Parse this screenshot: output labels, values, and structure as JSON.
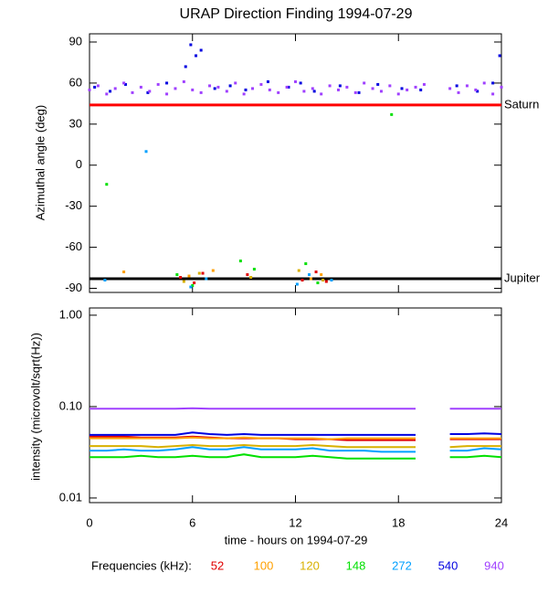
{
  "title": "URAP Direction Finding  1994-07-29",
  "xlabel": "time - hours on 1994-07-29",
  "legend_title": "Frequencies (kHz):",
  "chart_data": [
    {
      "type": "scatter",
      "ylabel": "Azimuthal angle (deg)",
      "xlim": [
        0,
        24
      ],
      "xticks": [
        0,
        6,
        12,
        18,
        24
      ],
      "ylim": [
        -93,
        96
      ],
      "yticks": [
        90,
        60,
        30,
        0,
        -30,
        -60,
        -90
      ],
      "reference_lines": [
        {
          "label": "Saturn",
          "value": 44,
          "color": "#ff0000"
        },
        {
          "label": "Jupiter",
          "value": -83,
          "color": "#000000"
        }
      ],
      "series": [
        {
          "name": "52",
          "color": "#e00000",
          "x": [
            5.3,
            6.1,
            6.6,
            9.2,
            12.4,
            13.2,
            13.8
          ],
          "values": [
            -82,
            -86,
            -79,
            -80,
            -84,
            -78,
            -85
          ]
        },
        {
          "name": "100",
          "color": "#ffa000",
          "x": [
            2.0,
            5.8,
            7.2,
            12.9,
            13.5
          ],
          "values": [
            -78,
            -81,
            -77,
            -83,
            -80
          ]
        },
        {
          "name": "120",
          "color": "#d8b000",
          "x": [
            5.5,
            6.4,
            9.4,
            12.2,
            13.6
          ],
          "values": [
            -85,
            -79,
            -82,
            -77,
            -84
          ]
        },
        {
          "name": "148",
          "color": "#00e000",
          "x": [
            1.0,
            5.1,
            6.0,
            8.8,
            9.6,
            12.6,
            13.3,
            17.6
          ],
          "values": [
            -14,
            -80,
            -88,
            -70,
            -76,
            -72,
            -86,
            37
          ]
        },
        {
          "name": "272",
          "color": "#00a0ff",
          "x": [
            0.9,
            3.3,
            5.9,
            6.8,
            12.1,
            12.8,
            14.1
          ],
          "values": [
            -84,
            10,
            -89,
            -83,
            -87,
            -80,
            -84
          ]
        },
        {
          "name": "540",
          "color": "#0000e0",
          "x": [
            0.3,
            1.2,
            2.1,
            3.4,
            4.5,
            5.6,
            5.9,
            6.2,
            6.5,
            7.3,
            8.2,
            9.1,
            10.4,
            11.6,
            12.3,
            13.1,
            14.6,
            15.7,
            16.8,
            18.2,
            19.3,
            21.4,
            22.6,
            23.5,
            23.9
          ],
          "values": [
            57,
            54,
            59,
            53,
            60,
            72,
            88,
            80,
            84,
            56,
            58,
            55,
            61,
            57,
            60,
            54,
            58,
            53,
            59,
            56,
            55,
            58,
            54,
            60,
            80
          ]
        },
        {
          "name": "940",
          "color": "#a040ff",
          "x": [
            0,
            0.5,
            1,
            1.5,
            2,
            2.5,
            3,
            3.5,
            4,
            4.5,
            5,
            5.5,
            6,
            6.5,
            7,
            7.5,
            8,
            8.5,
            9,
            9.5,
            10,
            10.5,
            11,
            11.5,
            12,
            12.5,
            13,
            13.5,
            14,
            14.5,
            15,
            15.5,
            16,
            16.5,
            17,
            17.5,
            18,
            18.5,
            19,
            19.5,
            21,
            21.5,
            22,
            22.5,
            23,
            23.5,
            24
          ],
          "values": [
            55,
            58,
            52,
            56,
            60,
            53,
            57,
            54,
            59,
            52,
            56,
            61,
            55,
            53,
            58,
            57,
            54,
            60,
            52,
            56,
            59,
            55,
            53,
            57,
            61,
            54,
            56,
            52,
            58,
            55,
            57,
            53,
            60,
            56,
            54,
            58,
            52,
            55,
            57,
            59,
            56,
            53,
            58,
            55,
            60,
            52,
            57
          ]
        }
      ]
    },
    {
      "type": "line",
      "ylabel": "intensity (microvolt/sqrt(Hz))",
      "log_scale": true,
      "xlim": [
        0,
        24
      ],
      "xticks": [
        0,
        6,
        12,
        18,
        24
      ],
      "ylim": [
        0.0089,
        1.2
      ],
      "yticks": [
        {
          "value": 1,
          "label": "1.00"
        },
        {
          "value": 0.1,
          "label": "0.10"
        },
        {
          "value": 0.01,
          "label": "0.01"
        }
      ],
      "x": [
        0,
        1,
        2,
        3,
        4,
        5,
        6,
        7,
        8,
        9,
        10,
        11,
        12,
        13,
        14,
        15,
        16,
        17,
        18,
        19,
        20,
        21,
        22,
        23,
        24
      ],
      "series": [
        {
          "color": "#e00000",
          "values": [
            0.047,
            0.047,
            0.047,
            0.046,
            0.046,
            0.046,
            0.047,
            0.046,
            0.045,
            0.045,
            0.045,
            0.045,
            0.044,
            0.044,
            0.044,
            0.043,
            0.043,
            0.043,
            0.043,
            0.043,
            null,
            0.044,
            0.044,
            0.044,
            0.044
          ]
        },
        {
          "color": "#ffa000",
          "values": [
            0.045,
            0.045,
            0.045,
            0.045,
            0.045,
            0.045,
            0.046,
            0.045,
            0.045,
            0.046,
            0.045,
            0.045,
            0.045,
            0.045,
            0.044,
            0.045,
            0.045,
            0.045,
            0.045,
            0.045,
            null,
            0.045,
            0.045,
            0.045,
            0.045
          ]
        },
        {
          "color": "#d8b000",
          "values": [
            0.037,
            0.037,
            0.037,
            0.037,
            0.036,
            0.037,
            0.038,
            0.037,
            0.037,
            0.038,
            0.037,
            0.037,
            0.037,
            0.038,
            0.037,
            0.036,
            0.036,
            0.036,
            0.036,
            0.036,
            null,
            0.036,
            0.037,
            0.037,
            0.037
          ]
        },
        {
          "color": "#00e000",
          "values": [
            0.028,
            0.028,
            0.028,
            0.029,
            0.028,
            0.028,
            0.029,
            0.028,
            0.028,
            0.03,
            0.028,
            0.028,
            0.028,
            0.029,
            0.028,
            0.027,
            0.027,
            0.027,
            0.027,
            0.027,
            null,
            0.028,
            0.028,
            0.029,
            0.028
          ]
        },
        {
          "color": "#00a0ff",
          "values": [
            0.033,
            0.033,
            0.034,
            0.033,
            0.033,
            0.034,
            0.036,
            0.034,
            0.034,
            0.036,
            0.034,
            0.034,
            0.034,
            0.035,
            0.033,
            0.033,
            0.033,
            0.032,
            0.032,
            0.032,
            null,
            0.033,
            0.033,
            0.035,
            0.034
          ]
        },
        {
          "color": "#0000e0",
          "values": [
            0.049,
            0.049,
            0.049,
            0.049,
            0.049,
            0.049,
            0.052,
            0.05,
            0.049,
            0.05,
            0.049,
            0.049,
            0.049,
            0.049,
            0.049,
            0.049,
            0.049,
            0.049,
            0.049,
            0.049,
            null,
            0.05,
            0.05,
            0.051,
            0.05
          ]
        },
        {
          "color": "#a040ff",
          "values": [
            0.095,
            0.095,
            0.095,
            0.095,
            0.095,
            0.095,
            0.096,
            0.095,
            0.095,
            0.095,
            0.095,
            0.095,
            0.095,
            0.095,
            0.095,
            0.095,
            0.095,
            0.095,
            0.095,
            0.095,
            null,
            0.095,
            0.095,
            0.095,
            0.095
          ]
        }
      ]
    }
  ]
}
